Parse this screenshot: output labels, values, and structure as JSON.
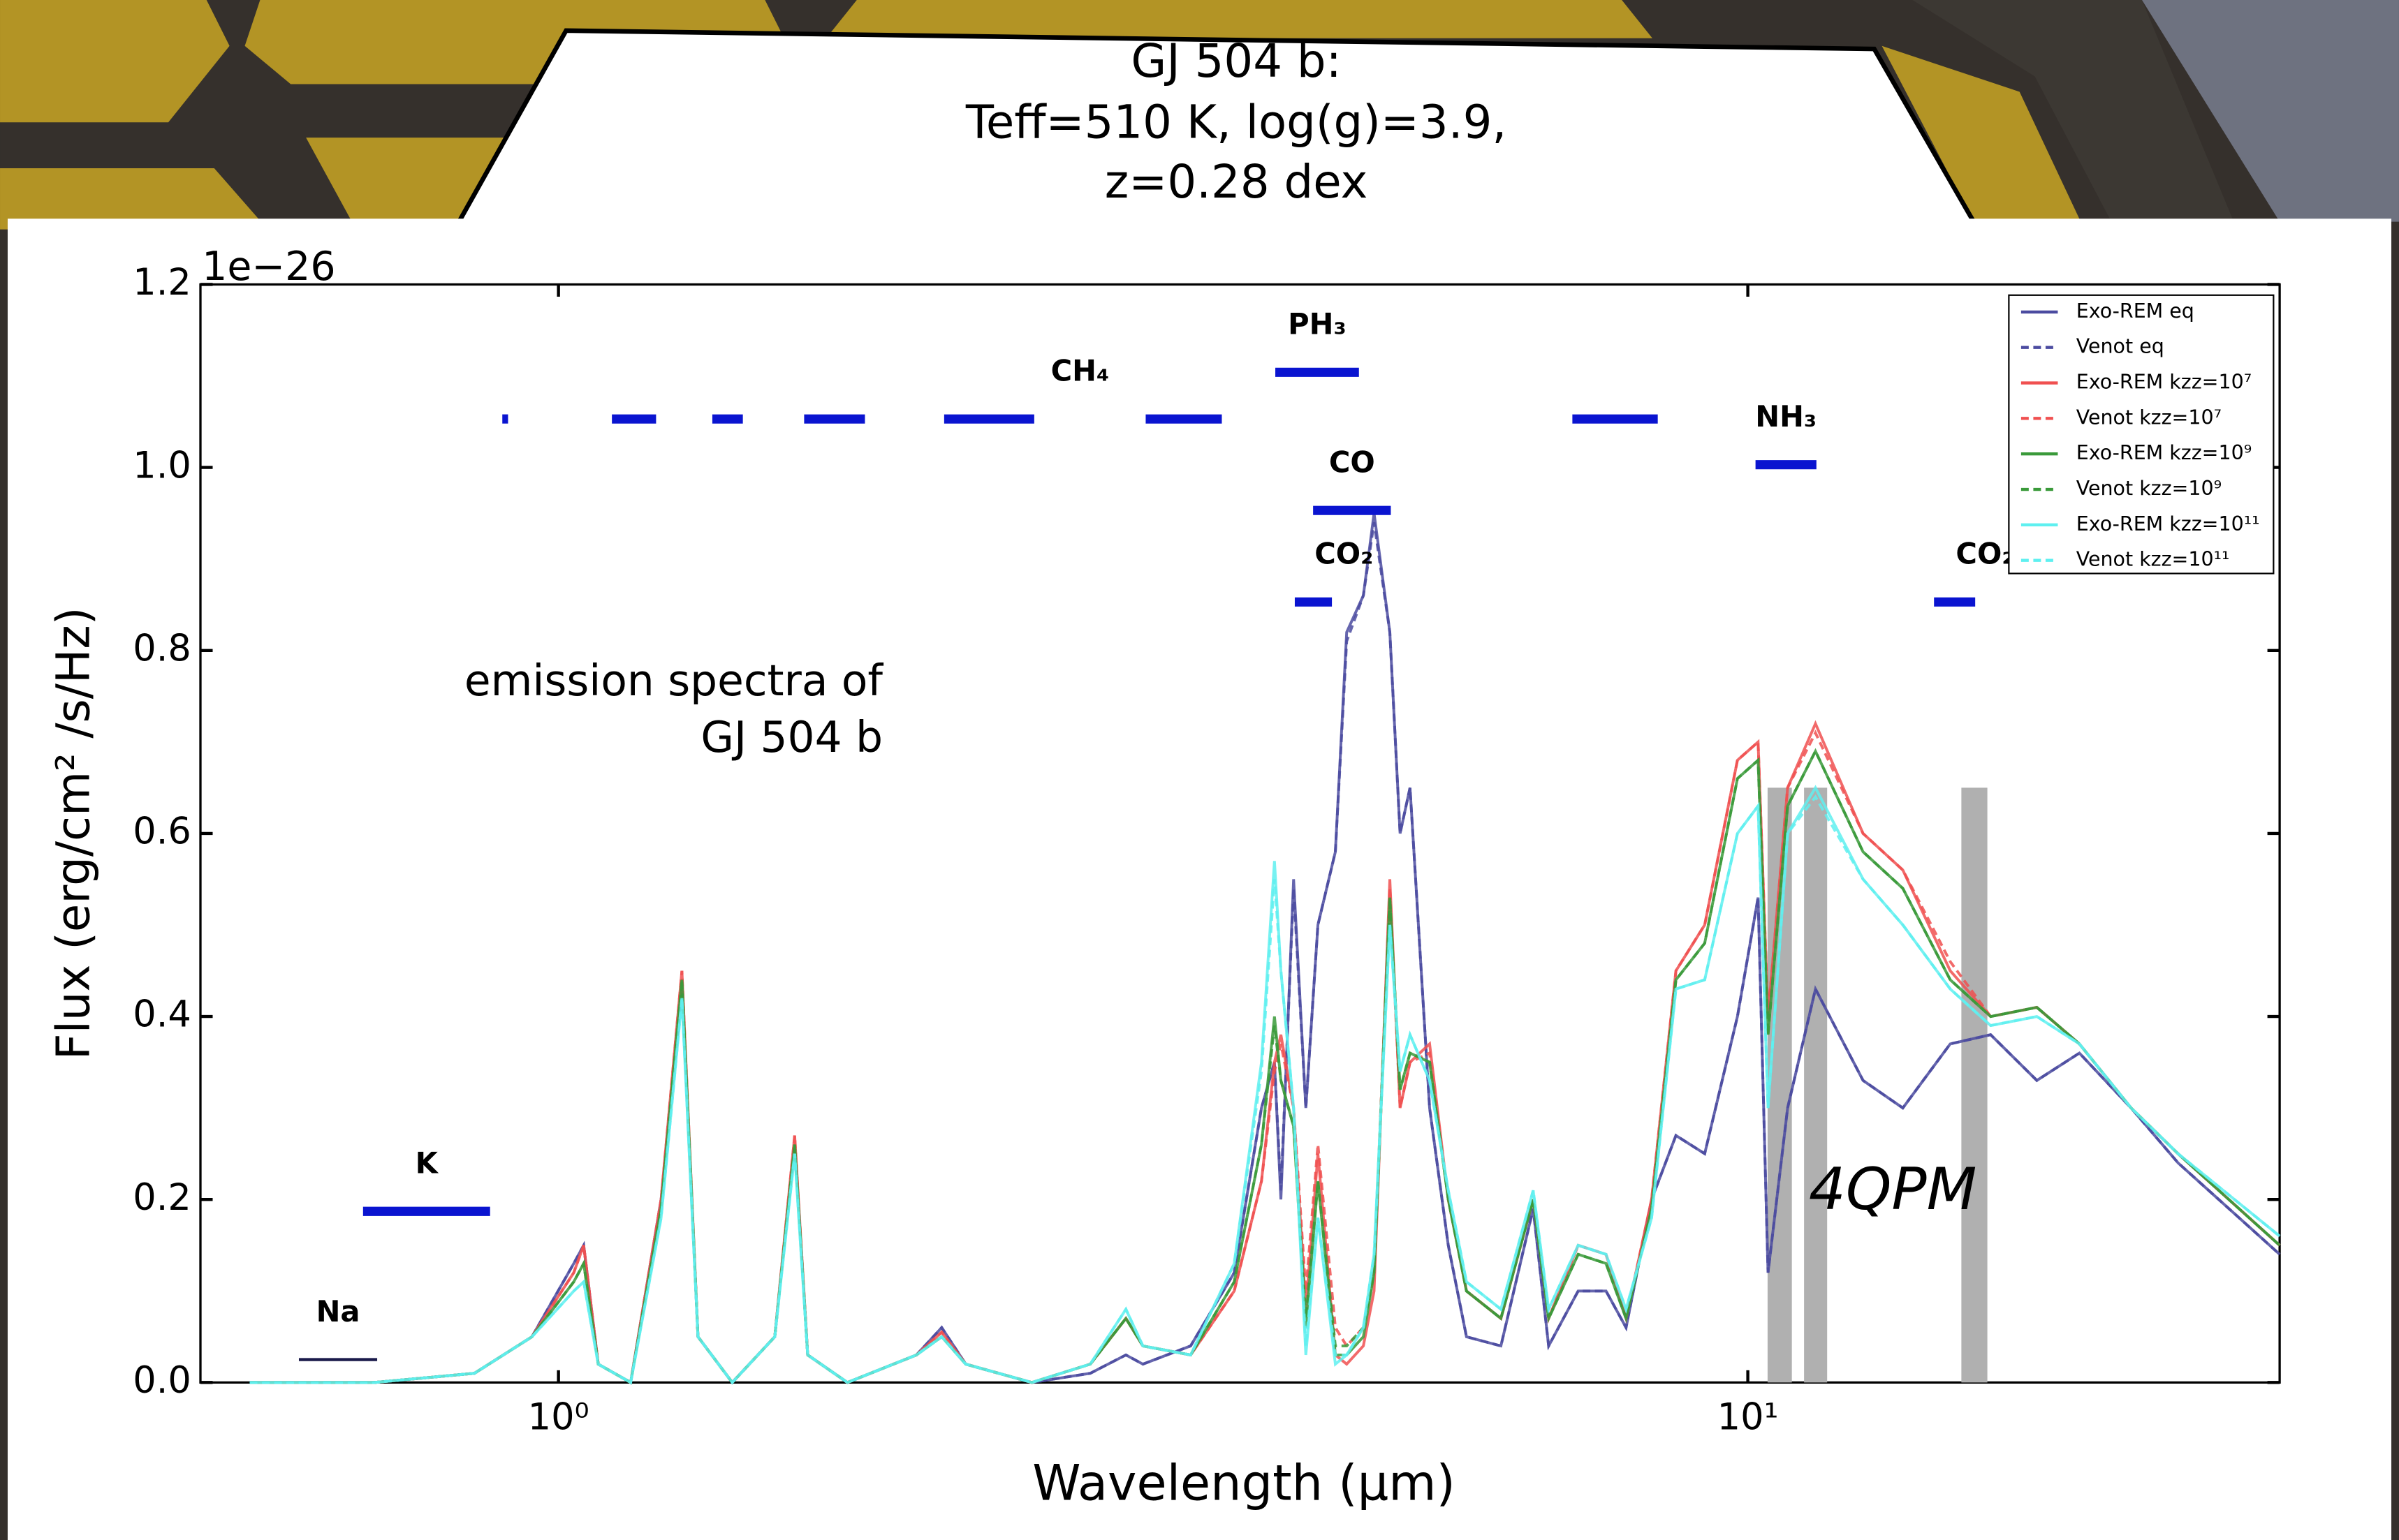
{
  "chart_data": {
    "type": "line",
    "title": [
      "GJ 504 b:",
      "Teff=510 K, log(g)=3.9,",
      "z=0.28 dex"
    ],
    "annotation": [
      "emission spectra of",
      "GJ 504 b"
    ],
    "x_label": "Wavelength (µm)",
    "y_label": "Flux (erg/cm² /s/Hz)",
    "y_offset_label": "1e−26",
    "log_x": true,
    "legend": "upper right",
    "xlim": [
      0.5,
      28
    ],
    "xticks": [
      {
        "value": 1,
        "label": "10⁰"
      },
      {
        "value": 10,
        "label": "10¹"
      }
    ],
    "ylim": [
      0,
      1.2
    ],
    "yticks": [
      {
        "value": 0,
        "label": "0.0"
      },
      0.2,
      0.4,
      0.6,
      0.8,
      {
        "value": 1,
        "label": "1.0"
      },
      1.2
    ],
    "x": [
      0.55,
      0.7,
      0.85,
      0.95,
      1.03,
      1.05,
      1.08,
      1.15,
      1.22,
      1.27,
      1.31,
      1.4,
      1.52,
      1.58,
      1.62,
      1.75,
      2.0,
      2.1,
      2.2,
      2.5,
      2.8,
      3.0,
      3.1,
      3.4,
      3.7,
      3.9,
      4.0,
      4.05,
      4.15,
      4.25,
      4.35,
      4.5,
      4.6,
      4.75,
      4.85,
      5.0,
      5.1,
      5.2,
      5.4,
      5.6,
      5.8,
      6.2,
      6.6,
      6.8,
      7.2,
      7.6,
      7.9,
      8.3,
      8.7,
      9.2,
      9.8,
      10.2,
      10.4,
      10.8,
      11.4,
      12.5,
      13.5,
      14.8,
      16.0,
      17.5,
      19,
      21,
      23,
      28
    ],
    "series": [
      {
        "name": "Exo-REM eq",
        "color": "#4b4ba0",
        "dashed": false,
        "values": [
          0,
          0,
          0.01,
          0.05,
          0.13,
          0.15,
          0.02,
          0,
          0.2,
          0.43,
          0.05,
          0,
          0.05,
          0.26,
          0.03,
          0,
          0.03,
          0.06,
          0.02,
          0,
          0.01,
          0.03,
          0.02,
          0.04,
          0.12,
          0.3,
          0.35,
          0.2,
          0.55,
          0.3,
          0.5,
          0.58,
          0.82,
          0.86,
          0.95,
          0.82,
          0.6,
          0.65,
          0.3,
          0.15,
          0.05,
          0.04,
          0.19,
          0.04,
          0.1,
          0.1,
          0.06,
          0.2,
          0.27,
          0.25,
          0.4,
          0.53,
          0.12,
          0.3,
          0.43,
          0.33,
          0.3,
          0.37,
          0.38,
          0.33,
          0.36,
          0.3,
          0.24,
          0.14
        ]
      },
      {
        "name": "Venot eq",
        "color": "#4b4ba0",
        "dashed": true,
        "values": [
          0,
          0,
          0.01,
          0.05,
          0.13,
          0.15,
          0.02,
          0,
          0.2,
          0.43,
          0.05,
          0,
          0.05,
          0.26,
          0.03,
          0,
          0.03,
          0.06,
          0.02,
          0,
          0.01,
          0.03,
          0.02,
          0.04,
          0.12,
          0.3,
          0.35,
          0.21,
          0.54,
          0.3,
          0.5,
          0.58,
          0.81,
          0.86,
          0.94,
          0.82,
          0.6,
          0.65,
          0.3,
          0.15,
          0.05,
          0.04,
          0.19,
          0.04,
          0.1,
          0.1,
          0.06,
          0.2,
          0.27,
          0.25,
          0.4,
          0.53,
          0.12,
          0.3,
          0.43,
          0.33,
          0.3,
          0.37,
          0.38,
          0.33,
          0.36,
          0.3,
          0.24,
          0.14
        ]
      },
      {
        "name": "Exo-REM kzz=10⁷",
        "color": "#f05050",
        "dashed": false,
        "values": [
          0,
          0,
          0.01,
          0.05,
          0.12,
          0.15,
          0.02,
          0,
          0.2,
          0.45,
          0.05,
          0,
          0.05,
          0.27,
          0.03,
          0,
          0.03,
          0.055,
          0.02,
          0,
          0.02,
          0.07,
          0.04,
          0.03,
          0.1,
          0.22,
          0.35,
          0.38,
          0.3,
          0.08,
          0.25,
          0.03,
          0.02,
          0.04,
          0.1,
          0.55,
          0.3,
          0.35,
          0.37,
          0.2,
          0.1,
          0.07,
          0.2,
          0.07,
          0.15,
          0.14,
          0.07,
          0.2,
          0.45,
          0.5,
          0.68,
          0.7,
          0.4,
          0.65,
          0.72,
          0.6,
          0.56,
          0.45,
          0.4,
          0.41,
          0.37,
          0.3,
          0.25,
          0.15
        ]
      },
      {
        "name": "Venot kzz=10⁷",
        "color": "#f05050",
        "dashed": true,
        "values": [
          0,
          0,
          0.01,
          0.05,
          0.12,
          0.15,
          0.02,
          0,
          0.2,
          0.45,
          0.05,
          0,
          0.05,
          0.27,
          0.03,
          0,
          0.03,
          0.055,
          0.02,
          0,
          0.02,
          0.07,
          0.04,
          0.03,
          0.1,
          0.22,
          0.34,
          0.37,
          0.3,
          0.1,
          0.26,
          0.06,
          0.04,
          0.06,
          0.12,
          0.54,
          0.3,
          0.35,
          0.36,
          0.2,
          0.1,
          0.07,
          0.2,
          0.07,
          0.15,
          0.14,
          0.07,
          0.2,
          0.45,
          0.5,
          0.68,
          0.7,
          0.4,
          0.65,
          0.71,
          0.6,
          0.56,
          0.46,
          0.4,
          0.41,
          0.37,
          0.3,
          0.25,
          0.15
        ]
      },
      {
        "name": "Exo-REM kzz=10⁹",
        "color": "#3a9a3a",
        "dashed": false,
        "values": [
          0,
          0,
          0.01,
          0.05,
          0.11,
          0.13,
          0.02,
          0,
          0.19,
          0.44,
          0.05,
          0,
          0.05,
          0.26,
          0.03,
          0,
          0.03,
          0.05,
          0.02,
          0,
          0.02,
          0.07,
          0.04,
          0.03,
          0.11,
          0.26,
          0.4,
          0.33,
          0.28,
          0.06,
          0.22,
          0.03,
          0.03,
          0.05,
          0.12,
          0.53,
          0.32,
          0.36,
          0.35,
          0.2,
          0.1,
          0.07,
          0.2,
          0.07,
          0.14,
          0.13,
          0.07,
          0.19,
          0.44,
          0.48,
          0.66,
          0.68,
          0.38,
          0.63,
          0.69,
          0.58,
          0.54,
          0.44,
          0.4,
          0.41,
          0.37,
          0.3,
          0.25,
          0.15
        ]
      },
      {
        "name": "Venot kzz=10⁹",
        "color": "#3a9a3a",
        "dashed": true,
        "values": [
          0,
          0,
          0.01,
          0.05,
          0.11,
          0.13,
          0.02,
          0,
          0.19,
          0.44,
          0.05,
          0,
          0.05,
          0.26,
          0.03,
          0,
          0.03,
          0.05,
          0.02,
          0,
          0.02,
          0.07,
          0.04,
          0.03,
          0.11,
          0.26,
          0.39,
          0.33,
          0.28,
          0.07,
          0.22,
          0.04,
          0.04,
          0.06,
          0.12,
          0.53,
          0.32,
          0.36,
          0.35,
          0.2,
          0.1,
          0.07,
          0.2,
          0.07,
          0.14,
          0.13,
          0.07,
          0.19,
          0.44,
          0.48,
          0.66,
          0.68,
          0.38,
          0.63,
          0.69,
          0.58,
          0.54,
          0.44,
          0.4,
          0.41,
          0.37,
          0.3,
          0.25,
          0.15
        ]
      },
      {
        "name": "Exo-REM kzz=10¹¹",
        "color": "#5ff0f0",
        "dashed": false,
        "values": [
          0,
          0,
          0.01,
          0.05,
          0.1,
          0.11,
          0.02,
          0,
          0.18,
          0.42,
          0.05,
          0,
          0.05,
          0.25,
          0.03,
          0,
          0.03,
          0.05,
          0.02,
          0,
          0.02,
          0.08,
          0.04,
          0.03,
          0.13,
          0.35,
          0.57,
          0.45,
          0.3,
          0.03,
          0.18,
          0.02,
          0.03,
          0.06,
          0.14,
          0.5,
          0.34,
          0.38,
          0.33,
          0.21,
          0.11,
          0.08,
          0.21,
          0.08,
          0.15,
          0.14,
          0.08,
          0.18,
          0.43,
          0.44,
          0.6,
          0.63,
          0.3,
          0.6,
          0.65,
          0.55,
          0.5,
          0.43,
          0.39,
          0.4,
          0.37,
          0.3,
          0.25,
          0.16
        ]
      },
      {
        "name": "Venot kzz=10¹¹",
        "color": "#5ff0f0",
        "dashed": true,
        "values": [
          0,
          0,
          0.01,
          0.05,
          0.1,
          0.11,
          0.02,
          0,
          0.18,
          0.42,
          0.05,
          0,
          0.05,
          0.25,
          0.03,
          0,
          0.03,
          0.05,
          0.02,
          0,
          0.02,
          0.08,
          0.04,
          0.03,
          0.13,
          0.34,
          0.55,
          0.45,
          0.3,
          0.04,
          0.18,
          0.03,
          0.03,
          0.06,
          0.14,
          0.5,
          0.34,
          0.38,
          0.33,
          0.21,
          0.11,
          0.08,
          0.21,
          0.08,
          0.15,
          0.14,
          0.08,
          0.18,
          0.43,
          0.44,
          0.6,
          0.63,
          0.3,
          0.6,
          0.64,
          0.55,
          0.5,
          0.43,
          0.39,
          0.4,
          0.37,
          0.3,
          0.25,
          0.16
        ]
      }
    ],
    "bands": [
      {
        "label": "Na",
        "color": "#1a1a4a",
        "y": 0.025,
        "ranges": [
          [
            0.605,
            0.704
          ]
        ]
      },
      {
        "label": "K",
        "color": "#0a14d0",
        "y": 0.187,
        "ranges": [
          [
            0.685,
            0.876
          ]
        ]
      },
      {
        "label": "CH₄",
        "color": "#0a14d0",
        "y": 1.053,
        "ranges": [
          [
            0.897,
            0.907
          ],
          [
            1.109,
            1.208
          ],
          [
            1.347,
            1.429
          ],
          [
            1.609,
            1.81
          ],
          [
            2.11,
            2.512
          ],
          [
            3.117,
            3.612
          ],
          [
            7.12,
            8.4
          ]
        ]
      },
      {
        "label": "PH₃",
        "color": "#0a14d0",
        "y": 1.104,
        "ranges": [
          [
            4.006,
            4.71
          ]
        ]
      },
      {
        "label": "CO",
        "color": "#0a14d0",
        "y": 0.953,
        "ranges": [
          [
            4.31,
            5.01
          ]
        ]
      },
      {
        "label": "CO₂",
        "color": "#0a14d0",
        "y": 0.853,
        "ranges": [
          [
            4.16,
            4.47
          ]
        ]
      },
      {
        "label": "NH₃",
        "color": "#0a14d0",
        "y": 1.003,
        "ranges": [
          [
            10.15,
            11.42
          ]
        ]
      },
      {
        "label": "CO₂",
        "color": "#0a14d0",
        "y": 0.853,
        "ranges": [
          [
            14.34,
            15.53
          ]
        ]
      }
    ],
    "masks": {
      "label": "4QPM",
      "color": "#b0b0b0",
      "top": 0.65,
      "ranges": [
        [
          10.39,
          10.89
        ],
        [
          11.15,
          11.66
        ],
        [
          15.12,
          15.9
        ]
      ]
    }
  }
}
